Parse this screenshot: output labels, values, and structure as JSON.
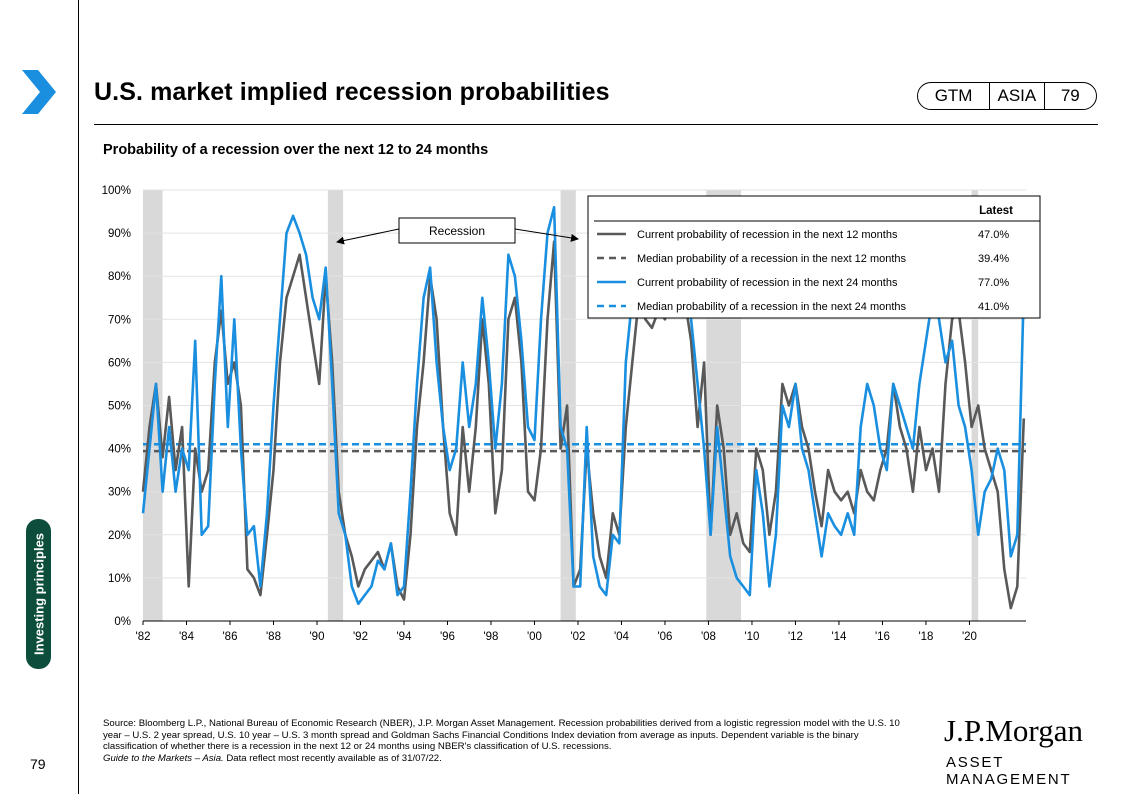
{
  "header": {
    "title": "U.S. market implied recession probabilities",
    "badge": [
      "GTM",
      "ASIA",
      "79"
    ]
  },
  "side_tab": "Investing principles",
  "page_number": "79",
  "chart_data": {
    "type": "line",
    "title": "Probability of a recession over the next 12 to 24 months",
    "xlabel": "",
    "ylabel": "",
    "xlim": [
      1982.0,
      2022.6
    ],
    "ylim": [
      0,
      100
    ],
    "y_ticks": [
      "0%",
      "10%",
      "20%",
      "30%",
      "40%",
      "50%",
      "60%",
      "70%",
      "80%",
      "90%",
      "100%"
    ],
    "x_ticks": [
      {
        "label": "'82",
        "x": 1982
      },
      {
        "label": "'84",
        "x": 1984
      },
      {
        "label": "'86",
        "x": 1986
      },
      {
        "label": "'88",
        "x": 1988
      },
      {
        "label": "'90",
        "x": 1990
      },
      {
        "label": "'92",
        "x": 1992
      },
      {
        "label": "'94",
        "x": 1994
      },
      {
        "label": "'96",
        "x": 1996
      },
      {
        "label": "'98",
        "x": 1998
      },
      {
        "label": "'00",
        "x": 2000
      },
      {
        "label": "'02",
        "x": 2002
      },
      {
        "label": "'04",
        "x": 2004
      },
      {
        "label": "'06",
        "x": 2006
      },
      {
        "label": "'08",
        "x": 2008
      },
      {
        "label": "'10",
        "x": 2010
      },
      {
        "label": "'12",
        "x": 2012
      },
      {
        "label": "'14",
        "x": 2014
      },
      {
        "label": "'16",
        "x": 2016
      },
      {
        "label": "'18",
        "x": 2018
      },
      {
        "label": "'20",
        "x": 2020
      }
    ],
    "grid": true,
    "recessions": [
      [
        1981.5,
        1982.9
      ],
      [
        1990.5,
        1991.2
      ],
      [
        2001.2,
        2001.9
      ],
      [
        2007.9,
        2009.5
      ],
      [
        2020.1,
        2020.4
      ]
    ],
    "annotation": "Recession",
    "legend": {
      "placement": "top-right",
      "header": "Latest",
      "entries": [
        {
          "label": "Current probability of recession in the next 12 months",
          "value": "47.0%",
          "style": "solid",
          "color": "#595959"
        },
        {
          "label": "Median probability of a recession in the next 12 months",
          "value": "39.4%",
          "style": "dashed",
          "color": "#595959"
        },
        {
          "label": "Current probability of recession in the next 24 months",
          "value": "77.0%",
          "style": "solid",
          "color": "#1a8fe0"
        },
        {
          "label": "Median probability of a recession in the next 24 months",
          "value": "41.0%",
          "style": "dashed",
          "color": "#1a8fe0"
        }
      ]
    },
    "medians": {
      "m12": 39.4,
      "m24": 41.0
    },
    "series": [
      {
        "key": "p12",
        "color": "#595959",
        "x": [
          1982.0,
          1982.3,
          1982.6,
          1982.9,
          1983.2,
          1983.5,
          1983.8,
          1984.1,
          1984.4,
          1984.7,
          1985.0,
          1985.3,
          1985.6,
          1985.9,
          1986.2,
          1986.5,
          1986.8,
          1987.1,
          1987.4,
          1987.7,
          1988.0,
          1988.3,
          1988.6,
          1988.9,
          1989.2,
          1989.5,
          1989.8,
          1990.1,
          1990.4,
          1990.7,
          1991.0,
          1991.3,
          1991.6,
          1991.9,
          1992.2,
          1992.5,
          1992.8,
          1993.1,
          1993.4,
          1993.7,
          1994.0,
          1994.3,
          1994.6,
          1994.9,
          1995.2,
          1995.5,
          1995.8,
          1996.1,
          1996.4,
          1996.7,
          1997.0,
          1997.3,
          1997.6,
          1997.9,
          1998.2,
          1998.5,
          1998.8,
          1999.1,
          1999.4,
          1999.7,
          2000.0,
          2000.3,
          2000.6,
          2000.9,
          2001.2,
          2001.5,
          2001.8,
          2002.1,
          2002.4,
          2002.7,
          2003.0,
          2003.3,
          2003.6,
          2003.9,
          2004.2,
          2004.5,
          2004.8,
          2005.1,
          2005.4,
          2005.7,
          2006.0,
          2006.3,
          2006.6,
          2006.9,
          2007.2,
          2007.5,
          2007.8,
          2008.1,
          2008.4,
          2008.7,
          2009.0,
          2009.3,
          2009.6,
          2009.9,
          2010.2,
          2010.5,
          2010.8,
          2011.1,
          2011.4,
          2011.7,
          2012.0,
          2012.3,
          2012.6,
          2012.9,
          2013.2,
          2013.5,
          2013.8,
          2014.1,
          2014.4,
          2014.7,
          2015.0,
          2015.3,
          2015.6,
          2015.9,
          2016.2,
          2016.5,
          2016.8,
          2017.1,
          2017.4,
          2017.7,
          2018.0,
          2018.3,
          2018.6,
          2018.9,
          2019.2,
          2019.5,
          2019.8,
          2020.1,
          2020.4,
          2020.7,
          2021.0,
          2021.3,
          2021.6,
          2021.9,
          2022.2,
          2022.5
        ],
        "values": [
          30,
          45,
          55,
          38,
          52,
          35,
          45,
          8,
          40,
          30,
          35,
          60,
          72,
          55,
          60,
          50,
          12,
          10,
          6,
          20,
          35,
          60,
          75,
          80,
          85,
          75,
          65,
          55,
          80,
          60,
          30,
          20,
          15,
          8,
          12,
          14,
          16,
          12,
          18,
          8,
          5,
          20,
          45,
          60,
          80,
          70,
          45,
          25,
          20,
          45,
          30,
          45,
          70,
          55,
          25,
          35,
          70,
          75,
          60,
          30,
          28,
          40,
          70,
          88,
          40,
          50,
          8,
          12,
          40,
          25,
          15,
          10,
          25,
          20,
          45,
          60,
          75,
          70,
          68,
          72,
          70,
          80,
          78,
          75,
          65,
          45,
          60,
          20,
          50,
          40,
          20,
          25,
          18,
          16,
          40,
          35,
          20,
          30,
          55,
          50,
          55,
          45,
          40,
          30,
          22,
          35,
          30,
          28,
          30,
          25,
          35,
          30,
          28,
          35,
          40,
          55,
          45,
          40,
          30,
          45,
          35,
          40,
          30,
          55,
          70,
          72,
          60,
          45,
          50,
          40,
          35,
          30,
          12,
          3,
          8,
          47
        ]
      },
      {
        "key": "p24",
        "color": "#1a8fe0",
        "x": [
          1982.0,
          1982.3,
          1982.6,
          1982.9,
          1983.2,
          1983.5,
          1983.8,
          1984.1,
          1984.4,
          1984.7,
          1985.0,
          1985.3,
          1985.6,
          1985.9,
          1986.2,
          1986.5,
          1986.8,
          1987.1,
          1987.4,
          1987.7,
          1988.0,
          1988.3,
          1988.6,
          1988.9,
          1989.2,
          1989.5,
          1989.8,
          1990.1,
          1990.4,
          1990.7,
          1991.0,
          1991.3,
          1991.6,
          1991.9,
          1992.2,
          1992.5,
          1992.8,
          1993.1,
          1993.4,
          1993.7,
          1994.0,
          1994.3,
          1994.6,
          1994.9,
          1995.2,
          1995.5,
          1995.8,
          1996.1,
          1996.4,
          1996.7,
          1997.0,
          1997.3,
          1997.6,
          1997.9,
          1998.2,
          1998.5,
          1998.8,
          1999.1,
          1999.4,
          1999.7,
          2000.0,
          2000.3,
          2000.6,
          2000.9,
          2001.2,
          2001.5,
          2001.8,
          2002.1,
          2002.4,
          2002.7,
          2003.0,
          2003.3,
          2003.6,
          2003.9,
          2004.2,
          2004.5,
          2004.8,
          2005.1,
          2005.4,
          2005.7,
          2006.0,
          2006.3,
          2006.6,
          2006.9,
          2007.2,
          2007.5,
          2007.8,
          2008.1,
          2008.4,
          2008.7,
          2009.0,
          2009.3,
          2009.6,
          2009.9,
          2010.2,
          2010.5,
          2010.8,
          2011.1,
          2011.4,
          2011.7,
          2012.0,
          2012.3,
          2012.6,
          2012.9,
          2013.2,
          2013.5,
          2013.8,
          2014.1,
          2014.4,
          2014.7,
          2015.0,
          2015.3,
          2015.6,
          2015.9,
          2016.2,
          2016.5,
          2016.8,
          2017.1,
          2017.4,
          2017.7,
          2018.0,
          2018.3,
          2018.6,
          2018.9,
          2019.2,
          2019.5,
          2019.8,
          2020.1,
          2020.4,
          2020.7,
          2021.0,
          2021.3,
          2021.6,
          2021.9,
          2022.2,
          2022.5
        ],
        "values": [
          25,
          40,
          55,
          30,
          45,
          30,
          40,
          35,
          65,
          20,
          22,
          55,
          80,
          45,
          70,
          40,
          20,
          22,
          8,
          25,
          50,
          70,
          90,
          94,
          90,
          85,
          75,
          70,
          82,
          55,
          25,
          20,
          8,
          4,
          6,
          8,
          14,
          12,
          18,
          6,
          8,
          30,
          55,
          75,
          82,
          60,
          45,
          35,
          40,
          60,
          45,
          55,
          75,
          60,
          40,
          55,
          85,
          80,
          65,
          45,
          42,
          70,
          90,
          96,
          45,
          40,
          8,
          8,
          45,
          15,
          8,
          6,
          20,
          18,
          60,
          75,
          85,
          88,
          80,
          85,
          75,
          85,
          82,
          80,
          70,
          55,
          40,
          20,
          45,
          30,
          15,
          10,
          8,
          6,
          35,
          25,
          8,
          20,
          50,
          45,
          55,
          40,
          35,
          25,
          15,
          25,
          22,
          20,
          25,
          20,
          45,
          55,
          50,
          40,
          35,
          55,
          50,
          45,
          40,
          55,
          65,
          75,
          70,
          60,
          65,
          50,
          45,
          35,
          20,
          30,
          33,
          40,
          35,
          15,
          20,
          77
        ]
      }
    ]
  },
  "footer": {
    "source": "Source: Bloomberg L.P., National Bureau of Economic Research (NBER), J.P. Morgan Asset Management. Recession probabilities derived from a logistic regression model with the U.S. 10 year – U.S. 2 year spread, U.S. 10 year – U.S. 3 month spread and Goldman Sachs Financial Conditions Index deviation from average as inputs. Dependent variable is the binary classification of whether there is a recession in the next 12 or 24 months using NBER's classification of U.S. recessions.",
    "guide_italic": "Guide to the Markets – Asia.",
    "guide_rest": " Data reflect most recently available as of 31/07/22.",
    "logo_main": "J.P.Morgan",
    "logo_sub": "ASSET MANAGEMENT"
  },
  "colors": {
    "p12": "#595959",
    "p24": "#1a8fe0",
    "recession_band": "#d9d9d9",
    "chevron": "#1a8fe0",
    "side_tab": "#0c4d3b"
  }
}
